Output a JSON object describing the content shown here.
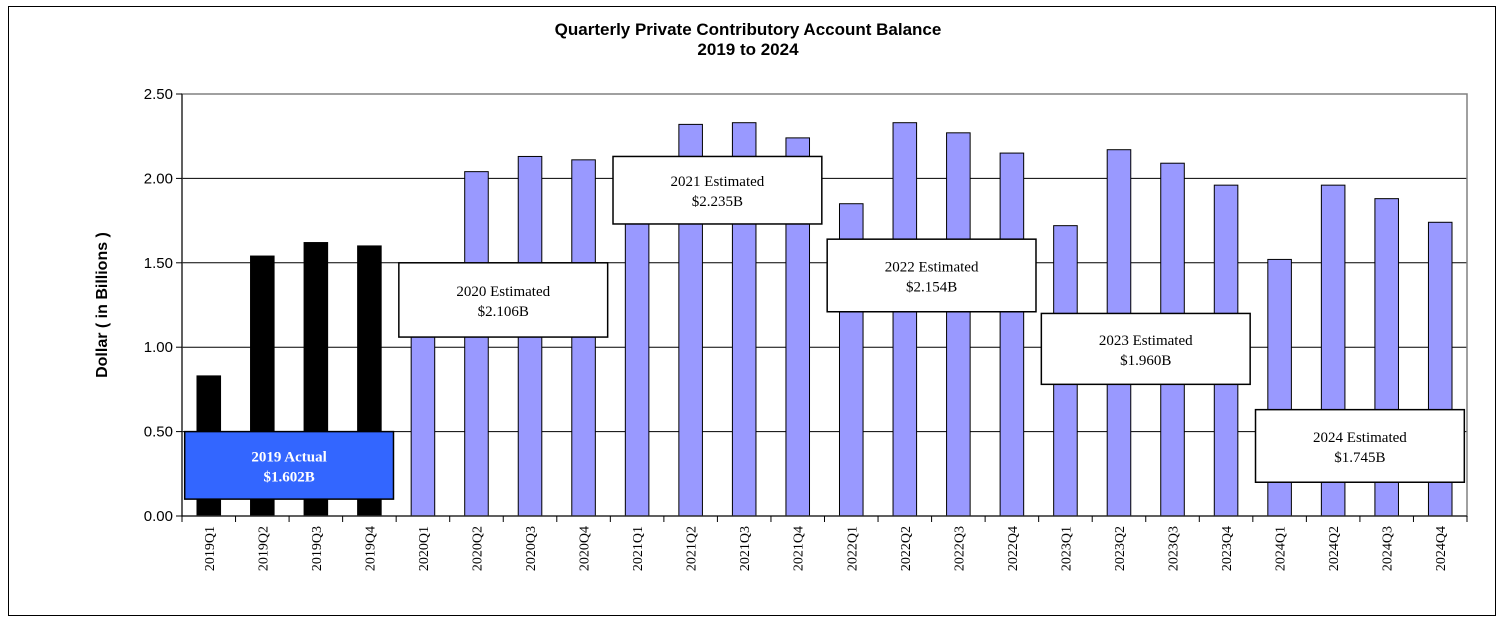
{
  "chart_data": {
    "type": "bar",
    "title": "Quarterly Private Contributory Account Balance",
    "subtitle": "2019  to 2024",
    "ylabel": "Dollar  ( in Billions )",
    "xlabel": "",
    "ylim": [
      0,
      2.5
    ],
    "yticks": [
      "0.00",
      "0.50",
      "1.00",
      "1.50",
      "2.00",
      "2.50"
    ],
    "grid": true,
    "legend": "none",
    "colors": {
      "actual": "#000000",
      "estimated": "#9999ff",
      "actual_box": "#3366ff"
    },
    "categories": [
      "2019Q1",
      "2019Q2",
      "2019Q3",
      "2019Q4",
      "2020Q1",
      "2020Q2",
      "2020Q3",
      "2020Q4",
      "2021Q1",
      "2021Q2",
      "2021Q3",
      "2021Q4",
      "2022Q1",
      "2022Q2",
      "2022Q3",
      "2022Q4",
      "2023Q1",
      "2023Q2",
      "2023Q3",
      "2023Q4",
      "2024Q1",
      "2024Q2",
      "2024Q3",
      "2024Q4"
    ],
    "values": [
      0.83,
      1.54,
      1.62,
      1.6,
      1.35,
      2.04,
      2.13,
      2.11,
      1.78,
      2.32,
      2.33,
      2.24,
      1.85,
      2.33,
      2.27,
      2.15,
      1.72,
      2.17,
      2.09,
      1.96,
      1.52,
      1.96,
      1.88,
      1.74
    ],
    "bar_type": [
      "actual",
      "actual",
      "actual",
      "actual",
      "estimated",
      "estimated",
      "estimated",
      "estimated",
      "estimated",
      "estimated",
      "estimated",
      "estimated",
      "estimated",
      "estimated",
      "estimated",
      "estimated",
      "estimated",
      "estimated",
      "estimated",
      "estimated",
      "estimated",
      "estimated",
      "estimated",
      "estimated"
    ],
    "annotations": [
      {
        "line1": "2019 Actual",
        "line2": "$1.602B",
        "style": "actual",
        "anchor_start": 0,
        "anchor_end": 3,
        "y_top": 0.5,
        "y_bottom": 0.1
      },
      {
        "line1": "2020 Estimated",
        "line2": "$2.106B",
        "style": "estimated",
        "anchor_start": 4,
        "anchor_end": 7,
        "y_top": 1.5,
        "y_bottom": 1.06
      },
      {
        "line1": "2021 Estimated",
        "line2": "$2.235B",
        "style": "estimated",
        "anchor_start": 8,
        "anchor_end": 11,
        "y_top": 2.13,
        "y_bottom": 1.73
      },
      {
        "line1": "2022 Estimated",
        "line2": "$2.154B",
        "style": "estimated",
        "anchor_start": 12,
        "anchor_end": 15,
        "y_top": 1.64,
        "y_bottom": 1.21
      },
      {
        "line1": "2023 Estimated",
        "line2": "$1.960B",
        "style": "estimated",
        "anchor_start": 16,
        "anchor_end": 19,
        "y_top": 1.2,
        "y_bottom": 0.78
      },
      {
        "line1": "2024 Estimated",
        "line2": "$1.745B",
        "style": "estimated",
        "anchor_start": 20,
        "anchor_end": 23,
        "y_top": 0.63,
        "y_bottom": 0.2
      }
    ]
  }
}
